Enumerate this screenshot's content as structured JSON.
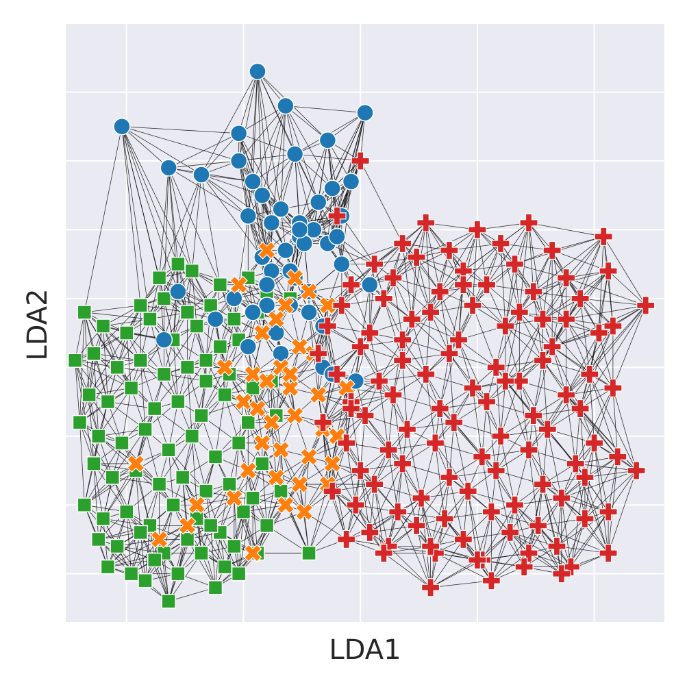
{
  "chart_data": {
    "type": "scatter",
    "title": "",
    "xlabel": "LDA1",
    "ylabel": "LDA2",
    "grid": true,
    "xlim": [
      -5.2,
      7.6
    ],
    "ylim": [
      -4.6,
      4.1
    ],
    "x_gridlines": [
      -3.9,
      -1.4,
      1.1,
      3.6,
      6.1
    ],
    "y_gridlines": [
      -3.9,
      -2.9,
      -1.9,
      -0.9,
      0.1,
      1.1,
      2.1,
      3.1,
      4.1
    ],
    "background": "#eaeaf2",
    "gridline_color": "#ffffff",
    "edge_color": "#111111",
    "neighbors": 12,
    "series": [
      {
        "marker": "circle",
        "color": "#1f77b4",
        "x": [
          -1.1,
          -0.5,
          1.2,
          -4.0,
          -1.5,
          0.4,
          -3.0,
          -2.3,
          -0.3,
          -1.5,
          -1.2,
          -1.0,
          0.2,
          0.5,
          0.9,
          0.7,
          -1.3,
          -0.8,
          -0.6,
          -0.2,
          0.1,
          -0.2,
          0.4,
          -0.5,
          -0.1,
          0.6,
          -1.0,
          0.7,
          -0.8,
          -0.3,
          1.3,
          -0.9,
          -2.8,
          -1.6,
          -0.9,
          0.0,
          -0.4,
          0.0,
          -2.0,
          0.3,
          -1.2,
          -0.7,
          -3.1,
          -1.3,
          -0.6,
          0.3,
          1.0,
          0.5,
          -0.2,
          -0.4
        ],
        "y": [
          3.4,
          2.9,
          2.8,
          2.6,
          2.5,
          2.4,
          2.0,
          1.9,
          2.2,
          2.1,
          1.8,
          1.6,
          1.5,
          1.7,
          1.8,
          1.3,
          1.3,
          1.2,
          1.4,
          1.2,
          1.1,
          1.0,
          0.9,
          0.8,
          0.9,
          1.0,
          0.7,
          0.6,
          0.5,
          0.4,
          0.3,
          0.3,
          0.2,
          0.1,
          0.0,
          0.2,
          0.0,
          -0.1,
          -0.2,
          -0.3,
          -0.1,
          -0.4,
          -0.5,
          -0.6,
          -0.7,
          -0.9,
          -1.1,
          -1.0,
          1.1,
          0.5
        ]
      },
      {
        "marker": "x",
        "color": "#ff7f0e",
        "x": [
          -0.9,
          -0.3,
          0.0,
          -0.5,
          0.4,
          -0.7,
          -1.0,
          -0.2,
          0.1,
          -0.6,
          -1.8,
          -1.2,
          -0.9,
          -0.4,
          0.2,
          -1.4,
          -1.1,
          -0.8,
          -0.3,
          0.3,
          0.6,
          -1.0,
          -0.6,
          0.0,
          0.5,
          -1.3,
          -0.7,
          -0.2,
          0.4,
          -3.7,
          -1.6,
          -0.5,
          -0.1,
          -2.4,
          -3.2,
          -2.6,
          -1.2,
          0.8,
          -1.5,
          -0.4
        ],
        "y": [
          0.8,
          0.4,
          0.2,
          0.0,
          0.0,
          -0.2,
          -0.4,
          -0.6,
          -0.7,
          -0.9,
          -0.9,
          -1.0,
          -1.1,
          -1.2,
          -1.3,
          -1.4,
          -1.5,
          -1.7,
          -1.6,
          -1.8,
          -1.9,
          -2.0,
          -2.1,
          -2.2,
          -2.3,
          -2.4,
          -2.5,
          -2.6,
          -2.6,
          -2.3,
          -2.8,
          -2.9,
          -3.0,
          -2.9,
          -3.4,
          -3.2,
          -3.6,
          -1.2,
          0.3,
          -1.0
        ]
      },
      {
        "marker": "square",
        "color": "#2ca02c",
        "x": [
          -2.8,
          -3.2,
          -2.5,
          -1.9,
          -1.3,
          -0.9,
          -0.4,
          -3.6,
          -3.1,
          -2.6,
          -2.1,
          -1.6,
          -1.1,
          -4.8,
          -4.4,
          -3.9,
          -3.4,
          -2.9,
          -2.4,
          -1.9,
          -1.5,
          -1.0,
          -5.0,
          -4.6,
          -4.1,
          -3.6,
          -3.1,
          -2.6,
          -2.2,
          -1.7,
          -1.2,
          -0.8,
          -4.7,
          -4.3,
          -3.8,
          -3.3,
          -2.8,
          -2.3,
          -1.8,
          -1.3,
          -0.7,
          -4.9,
          -4.5,
          -4.0,
          -3.5,
          -3.0,
          -2.5,
          -2.0,
          -1.5,
          -1.0,
          -4.6,
          -4.2,
          -3.7,
          -3.2,
          -2.7,
          -2.2,
          -1.7,
          -1.2,
          -0.6,
          -4.8,
          -4.4,
          -3.9,
          -3.4,
          -2.9,
          -2.4,
          -1.9,
          -1.4,
          -0.9,
          -4.5,
          -4.1,
          -3.6,
          -3.1,
          -2.6,
          -2.1,
          -1.6,
          -1.1,
          -4.3,
          -3.8,
          -3.3,
          -2.8,
          -2.3,
          -1.8,
          -3.5,
          -3.0,
          -2.0,
          -1.5,
          0.0,
          -2.2
        ],
        "y": [
          0.6,
          0.4,
          0.5,
          0.3,
          0.4,
          0.2,
          0.1,
          0.0,
          0.1,
          -0.1,
          0.0,
          -0.2,
          -0.1,
          -0.1,
          -0.3,
          -0.4,
          -0.2,
          -0.5,
          -0.3,
          -0.6,
          -0.5,
          -0.4,
          -0.8,
          -0.7,
          -0.9,
          -0.8,
          -1.0,
          -0.9,
          -1.1,
          -1.0,
          -1.2,
          -1.1,
          -1.3,
          -1.4,
          -1.2,
          -1.5,
          -1.4,
          -1.6,
          -1.3,
          -1.7,
          -1.6,
          -1.7,
          -1.9,
          -2.0,
          -1.8,
          -2.1,
          -1.9,
          -2.2,
          -2.0,
          -2.3,
          -2.3,
          -2.5,
          -2.4,
          -2.6,
          -2.5,
          -2.7,
          -2.6,
          -2.8,
          -2.7,
          -2.9,
          -3.1,
          -3.0,
          -3.2,
          -2.9,
          -3.1,
          -3.3,
          -3.0,
          -3.2,
          -3.4,
          -3.5,
          -3.3,
          -3.6,
          -3.4,
          -3.2,
          -3.5,
          -3.6,
          -3.8,
          -3.9,
          -3.7,
          -3.9,
          -3.6,
          -3.8,
          -4.0,
          -4.3,
          -4.1,
          -3.9,
          -3.6,
          -0.8
        ]
      },
      {
        "marker": "plus",
        "color": "#d62728",
        "x": [
          1.1,
          0.6,
          2.5,
          3.6,
          4.7,
          6.3,
          2.0,
          3.0,
          4.1,
          5.2,
          1.4,
          2.3,
          3.3,
          4.4,
          5.5,
          6.4,
          0.9,
          1.8,
          2.8,
          3.8,
          4.8,
          5.8,
          7.2,
          0.7,
          1.6,
          2.6,
          3.5,
          4.5,
          5.5,
          6.5,
          0.4,
          1.3,
          2.2,
          3.2,
          4.2,
          5.2,
          6.2,
          0.2,
          1.1,
          2.0,
          3.0,
          4.0,
          5.0,
          6.0,
          0.6,
          1.5,
          2.5,
          3.5,
          4.5,
          5.5,
          6.5,
          0.9,
          1.8,
          2.8,
          3.8,
          4.8,
          5.8,
          0.3,
          1.2,
          2.1,
          3.1,
          4.1,
          5.1,
          6.1,
          0.8,
          1.7,
          2.7,
          3.7,
          4.7,
          5.7,
          6.6,
          1.1,
          2.0,
          3.0,
          4.0,
          5.0,
          5.9,
          7.0,
          0.5,
          1.4,
          2.4,
          3.4,
          4.4,
          5.4,
          6.4,
          1.0,
          1.9,
          2.9,
          3.9,
          4.9,
          5.9,
          1.3,
          2.3,
          3.3,
          4.3,
          5.3,
          6.4,
          1.7,
          2.7,
          3.7,
          4.7,
          5.6,
          0.8,
          1.6,
          2.6,
          3.6,
          4.6,
          5.4,
          0.9,
          2.0,
          3.3,
          4.2,
          5.0,
          2.6,
          3.9
        ],
        "y": [
          2.1,
          1.3,
          1.2,
          1.1,
          1.2,
          1.0,
          0.9,
          0.8,
          0.9,
          0.8,
          0.6,
          0.7,
          0.5,
          0.6,
          0.4,
          0.5,
          0.3,
          0.4,
          0.2,
          0.3,
          0.2,
          0.1,
          0.0,
          0.0,
          0.1,
          -0.1,
          0.0,
          -0.1,
          -0.2,
          -0.3,
          -0.3,
          -0.4,
          -0.2,
          -0.5,
          -0.3,
          -0.6,
          -0.4,
          -0.7,
          -0.6,
          -0.8,
          -0.7,
          -0.9,
          -0.8,
          -1.0,
          -1.0,
          -1.1,
          -1.0,
          -1.2,
          -1.1,
          -1.3,
          -1.2,
          -1.4,
          -1.3,
          -1.5,
          -1.4,
          -1.6,
          -1.5,
          -1.7,
          -1.6,
          -1.8,
          -1.7,
          -1.9,
          -1.8,
          -2.0,
          -2.0,
          -2.1,
          -2.0,
          -2.2,
          -2.1,
          -2.3,
          -2.2,
          -2.4,
          -2.3,
          -2.5,
          -2.4,
          -2.6,
          -2.5,
          -2.4,
          -2.7,
          -2.6,
          -2.8,
          -2.7,
          -2.9,
          -2.8,
          -3.0,
          -2.9,
          -3.0,
          -3.1,
          -3.0,
          -3.2,
          -3.1,
          -3.3,
          -3.2,
          -3.4,
          -3.3,
          -3.5,
          -3.6,
          -3.5,
          -3.6,
          -3.7,
          -3.6,
          -3.8,
          -3.4,
          -3.6,
          -3.5,
          -3.7,
          -3.8,
          -3.9,
          -1.5,
          -0.5,
          0.3,
          -1.1,
          -0.2,
          -4.1,
          -4.0
        ]
      }
    ]
  }
}
